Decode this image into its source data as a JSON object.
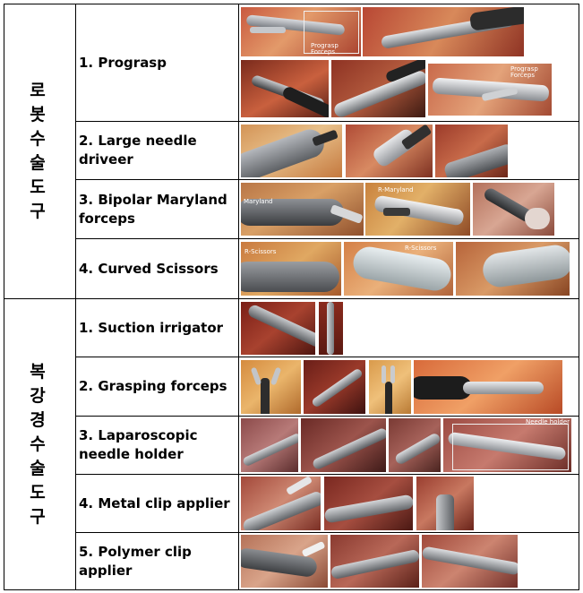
{
  "categories": [
    {
      "label": "로봇수술도구",
      "chars": [
        "로",
        "봇",
        "수",
        "술",
        "도",
        "구"
      ]
    },
    {
      "label": "복강경수술도구",
      "chars": [
        "복",
        "강",
        "경",
        "수",
        "술",
        "도",
        "구"
      ]
    }
  ],
  "instruments": [
    {
      "label": "1. Prograsp"
    },
    {
      "label": "2. Large needle driveer"
    },
    {
      "label": "3. Bipolar Maryland forceps"
    },
    {
      "label": "4. Curved Scissors"
    },
    {
      "label": "1. Suction irrigator"
    },
    {
      "label": "2. Grasping forceps"
    },
    {
      "label": "3. Laparoscopic needle holder"
    },
    {
      "label": "4. Metal clip applier"
    },
    {
      "label": "5. Polymer clip applier"
    }
  ],
  "image_overlays": {
    "prograsp_1": "Prograsp Forceps",
    "prograsp_5": "Prograsp Forceps",
    "maryland_1": "Maryland",
    "maryland_2": "R-Maryland",
    "scissors_1": "R-Scissors",
    "scissors_2": "R-Scissors",
    "needle_holder_4": "Needle holder"
  },
  "colors": {
    "tissue_red": "#b5402e",
    "tissue_orange": "#d9843f",
    "tissue_yellow": "#e6b04a",
    "instrument_grey": "#8c8f94",
    "instrument_dark": "#2a2a2a"
  }
}
